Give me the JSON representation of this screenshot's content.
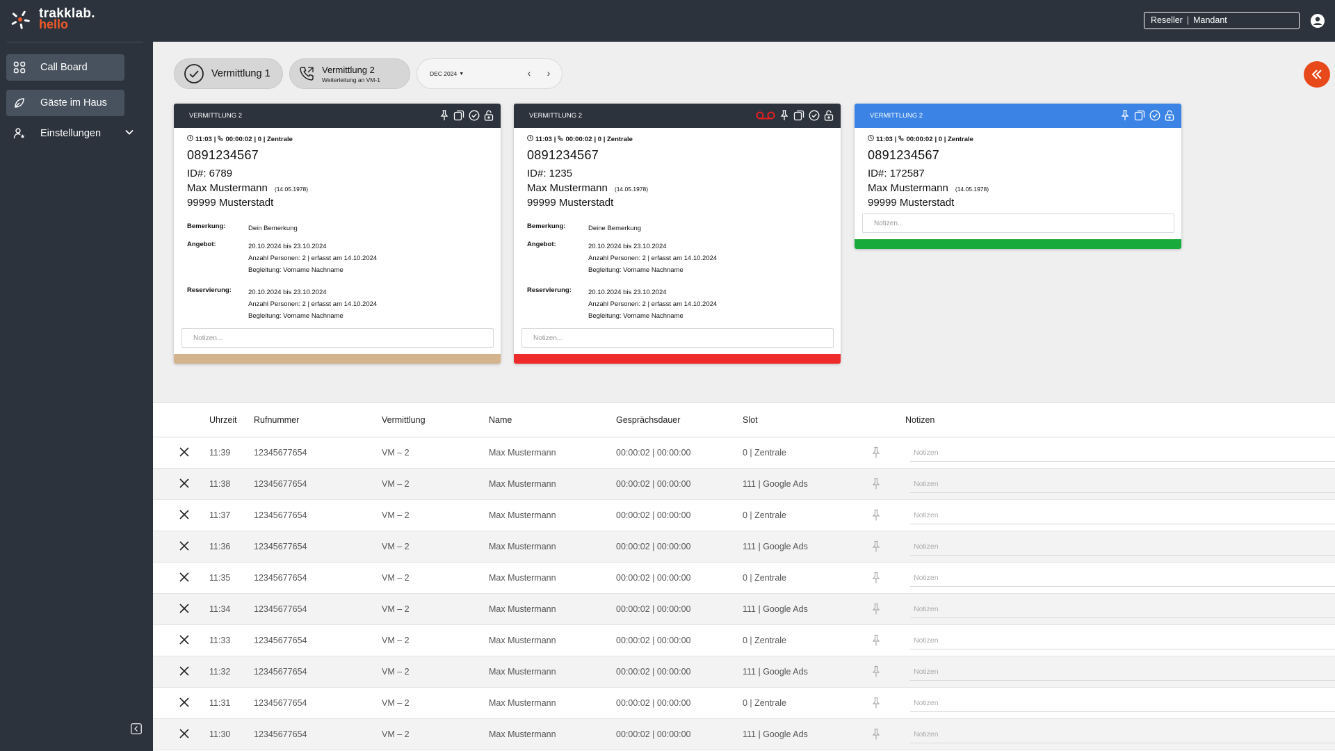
{
  "app": {
    "logo_line1": "trakklab.",
    "logo_line2": "hello",
    "tenant_reseller": "Reseller",
    "tenant_sep": "|",
    "tenant_mandant": "Mandant"
  },
  "sidebar": {
    "items": [
      {
        "label": "Call Board",
        "icon": "grid-icon"
      },
      {
        "label": "Gäste im Haus",
        "icon": "guests-icon"
      },
      {
        "label": "Einstellungen",
        "icon": "user-settings-icon"
      }
    ]
  },
  "toolbar": {
    "tab1_label": "Vermittlung 1",
    "tab2_label": "Vermittlung 2",
    "tab2_sub": "Weiterleitung an VM-1",
    "date_label": "DEC 2024"
  },
  "cards": [
    {
      "title": "VERMITTLUNG 2",
      "meta_time": "11:03",
      "meta_duration": "00:00:02",
      "meta_rest": "| 0 | Zentrale",
      "phone": "0891234567",
      "id": "ID#: 6789",
      "name": "Max Mustermann",
      "dob": "(14.05.1978)",
      "city": "99999 Musterstadt",
      "remark_label": "Bemerkung:",
      "remark": "Dein Bemerkung",
      "offer_label": "Angebot:",
      "offer_lines": [
        "20.10.2024 bis 23.10.2024",
        "Anzahl Personen: 2 | erfasst am 14.10.2024",
        "Begleitung: Vorname Nachname"
      ],
      "reservation_label": "Reservierung:",
      "reservation_lines": [
        "20.10.2024 bis 23.10.2024",
        "Anzahl Personen: 2 | erfasst am 14.10.2024",
        "Begleitung: Vorname Nachname"
      ],
      "notes_placeholder": "Notizen...",
      "bar_color": "#d3b48d",
      "header_color": "#2c333d"
    },
    {
      "title": "VERMITTLUNG 2",
      "meta_time": "11:03",
      "meta_duration": "00:00:02",
      "meta_rest": "| 0 | Zentrale",
      "phone": "0891234567",
      "id": "ID#: 1235",
      "name": "Max Mustermann",
      "dob": "(14.05.1978)",
      "city": "99999 Musterstadt",
      "remark_label": "Bemerkung:",
      "remark": "Deine Bemerkung",
      "offer_label": "Angebot:",
      "offer_lines": [
        "20.10.2024 bis 23.10.2024",
        "Anzahl Personen: 2 | erfasst am 14.10.2024",
        "Begleitung: Vorname Nachname"
      ],
      "reservation_label": "Reservierung:",
      "reservation_lines": [
        "20.10.2024 bis 23.10.2024",
        "Anzahl Personen: 2 | erfasst am 14.10.2024",
        "Begleitung: Vorname Nachname"
      ],
      "notes_placeholder": "Notizen...",
      "bar_color": "#ee2a2a",
      "header_color": "#2c333d",
      "voicemail_color": "#e02020"
    },
    {
      "title": "VERMITTLUNG 2",
      "meta_time": "11:03",
      "meta_duration": "00:00:02",
      "meta_rest": "| 0 | Zentrale",
      "phone": "0891234567",
      "id": "ID#: 172587",
      "name": "Max Mustermann",
      "dob": "(14.05.1978)",
      "city": "99999 Musterstadt",
      "notes_placeholder": "Notizen...",
      "bar_color": "#19aa3c",
      "header_color": "#3b84e5"
    }
  ],
  "table": {
    "headers": [
      "Uhrzeit",
      "Rufnummer",
      "Vermittlung",
      "Name",
      "Gesprächsdauer",
      "Slot",
      "Notizen"
    ],
    "notes_placeholder": "Notizen",
    "rows": [
      {
        "time": "11:39",
        "number": "12345677654",
        "vm": "VM – 2",
        "name": "Max Mustermann",
        "duration": "00:00:02 | 00:00:00",
        "slot": "0 | Zentrale"
      },
      {
        "time": "11:38",
        "number": "12345677654",
        "vm": "VM – 2",
        "name": "Max Mustermann",
        "duration": "00:00:02 | 00:00:00",
        "slot": "111 | Google Ads"
      },
      {
        "time": "11:37",
        "number": "12345677654",
        "vm": "VM – 2",
        "name": "Max Mustermann",
        "duration": "00:00:02 | 00:00:00",
        "slot": "0 | Zentrale"
      },
      {
        "time": "11:36",
        "number": "12345677654",
        "vm": "VM – 2",
        "name": "Max Mustermann",
        "duration": "00:00:02 | 00:00:00",
        "slot": "111 | Google Ads"
      },
      {
        "time": "11:35",
        "number": "12345677654",
        "vm": "VM – 2",
        "name": "Max Mustermann",
        "duration": "00:00:02 | 00:00:00",
        "slot": "0 | Zentrale"
      },
      {
        "time": "11:34",
        "number": "12345677654",
        "vm": "VM – 2",
        "name": "Max Mustermann",
        "duration": "00:00:02 | 00:00:00",
        "slot": "111 | Google Ads"
      },
      {
        "time": "11:33",
        "number": "12345677654",
        "vm": "VM – 2",
        "name": "Max Mustermann",
        "duration": "00:00:02 | 00:00:00",
        "slot": "0 | Zentrale"
      },
      {
        "time": "11:32",
        "number": "12345677654",
        "vm": "VM – 2",
        "name": "Max Mustermann",
        "duration": "00:00:02 | 00:00:00",
        "slot": "111 | Google Ads"
      },
      {
        "time": "11:31",
        "number": "12345677654",
        "vm": "VM – 2",
        "name": "Max Mustermann",
        "duration": "00:00:02 | 00:00:00",
        "slot": "0 | Zentrale"
      },
      {
        "time": "11:30",
        "number": "12345677654",
        "vm": "VM – 2",
        "name": "Max Mustermann",
        "duration": "00:00:02 | 00:00:00",
        "slot": "111 | Google Ads"
      }
    ]
  },
  "colors": {
    "sidebar_bg": "#2c333d",
    "accent_orange": "#e8491b",
    "card_blue": "#3b84e5"
  }
}
